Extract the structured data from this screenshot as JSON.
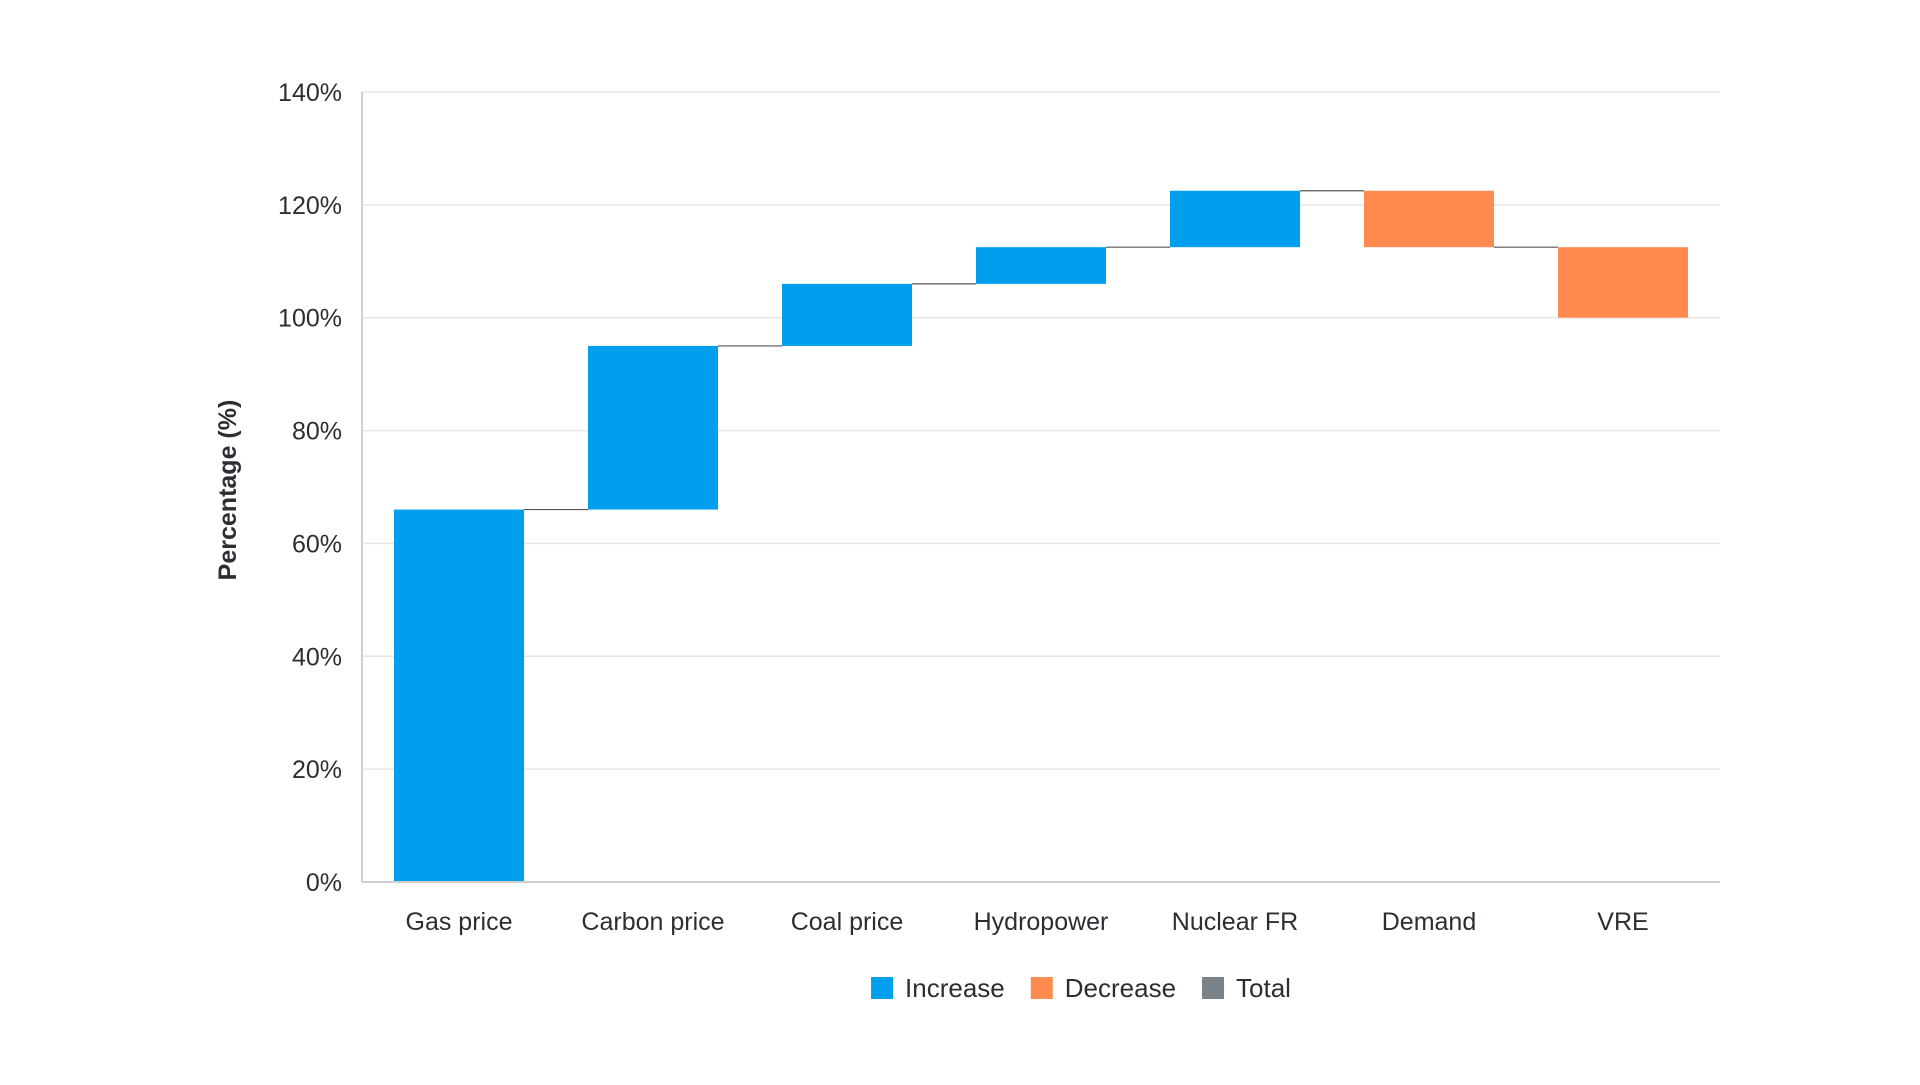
{
  "chart_data": {
    "type": "bar",
    "subtype": "waterfall",
    "title": "",
    "xlabel": "",
    "ylabel": "Percentage (%)",
    "ylim": [
      0,
      140
    ],
    "yticks": [
      "0%",
      "20%",
      "40%",
      "60%",
      "80%",
      "100%",
      "120%",
      "140%"
    ],
    "ytick_values": [
      0,
      20,
      40,
      60,
      80,
      100,
      120,
      140
    ],
    "grid": true,
    "legend_position": "bottom",
    "categories": [
      "Gas price",
      "Carbon price",
      "Coal price",
      "Hydropower",
      "Nuclear FR",
      "Demand",
      "VRE"
    ],
    "steps": [
      {
        "category": "Gas price",
        "kind": "Increase",
        "start": 0,
        "end": 66
      },
      {
        "category": "Carbon price",
        "kind": "Increase",
        "start": 66,
        "end": 95
      },
      {
        "category": "Coal price",
        "kind": "Increase",
        "start": 95,
        "end": 106
      },
      {
        "category": "Hydropower",
        "kind": "Increase",
        "start": 106,
        "end": 112.5
      },
      {
        "category": "Nuclear FR",
        "kind": "Increase",
        "start": 112.5,
        "end": 122.5
      },
      {
        "category": "Demand",
        "kind": "Decrease",
        "start": 122.5,
        "end": 112.5
      },
      {
        "category": "VRE",
        "kind": "Decrease",
        "start": 112.5,
        "end": 100
      }
    ],
    "legend": [
      {
        "name": "Increase",
        "color": "#009fee"
      },
      {
        "name": "Decrease",
        "color": "#ff8a50"
      },
      {
        "name": "Total",
        "color": "#7a8389"
      }
    ],
    "colors": {
      "Increase": "#009fee",
      "Decrease": "#ff8a50",
      "Total": "#7a8389",
      "grid": "#e6e6e6",
      "axis": "#cfcfcf",
      "connector": "#555555"
    }
  }
}
